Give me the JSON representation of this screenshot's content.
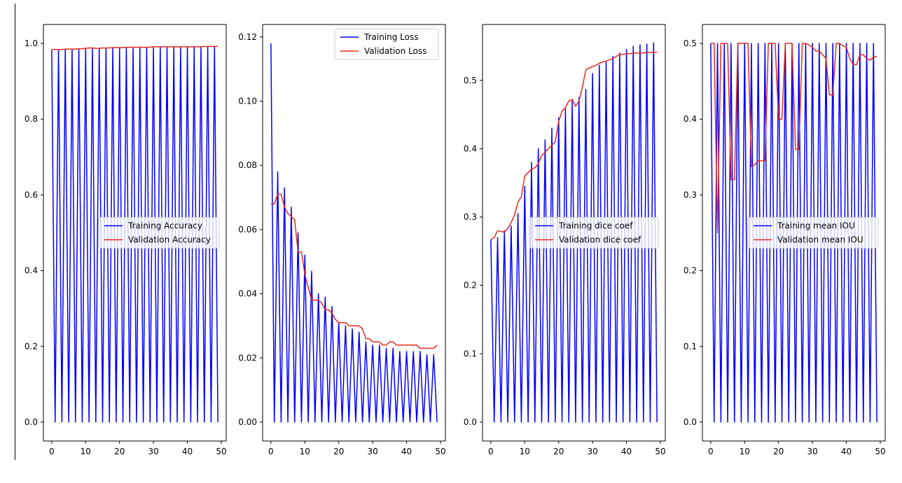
{
  "chart_data": [
    {
      "type": "line",
      "x": [
        0,
        1,
        2,
        3,
        4,
        5,
        6,
        7,
        8,
        9,
        10,
        11,
        12,
        13,
        14,
        15,
        16,
        17,
        18,
        19,
        20,
        21,
        22,
        23,
        24,
        25,
        26,
        27,
        28,
        29,
        30,
        31,
        32,
        33,
        34,
        35,
        36,
        37,
        38,
        39,
        40,
        41,
        42,
        43,
        44,
        45,
        46,
        47,
        48,
        49
      ],
      "xlim": [
        -2.45,
        51.45
      ],
      "ylim": [
        -0.05,
        1.05
      ],
      "xticks": [
        0,
        10,
        20,
        30,
        40,
        50
      ],
      "yticks": [
        0.0,
        0.2,
        0.4,
        0.6,
        0.8,
        1.0
      ],
      "ytick_labels": [
        "0.0",
        "0.2",
        "0.4",
        "0.6",
        "0.8",
        "1.0"
      ],
      "legend_loc": "center right",
      "series": [
        {
          "name": "Training Accuracy",
          "color": "#0000ff",
          "values": [
            0.983,
            0,
            0.984,
            0,
            0.984,
            0,
            0.985,
            0,
            0.985,
            0,
            0.986,
            0,
            0.987,
            0,
            0.987,
            0,
            0.987,
            0,
            0.988,
            0,
            0.988,
            0,
            0.988,
            0,
            0.989,
            0,
            0.989,
            0,
            0.989,
            0,
            0.989,
            0,
            0.99,
            0,
            0.99,
            0,
            0.99,
            0,
            0.99,
            0,
            0.991,
            0,
            0.991,
            0,
            0.991,
            0,
            0.991,
            0,
            0.991,
            0
          ]
        },
        {
          "name": "Validation Accuracy",
          "color": "#e8291c",
          "values": [
            0.984,
            0.984,
            0.984,
            0.984,
            0.985,
            0.985,
            0.985,
            0.985,
            0.986,
            0.986,
            0.987,
            0.988,
            0.988,
            0.987,
            0.987,
            0.988,
            0.988,
            0.988,
            0.989,
            0.989,
            0.989,
            0.989,
            0.99,
            0.99,
            0.99,
            0.99,
            0.99,
            0.99,
            0.99,
            0.99,
            0.991,
            0.991,
            0.991,
            0.991,
            0.991,
            0.991,
            0.991,
            0.991,
            0.991,
            0.991,
            0.991,
            0.991,
            0.991,
            0.991,
            0.991,
            0.992,
            0.992,
            0.992,
            0.992,
            0.992
          ]
        }
      ]
    },
    {
      "type": "line",
      "x": [
        0,
        1,
        2,
        3,
        4,
        5,
        6,
        7,
        8,
        9,
        10,
        11,
        12,
        13,
        14,
        15,
        16,
        17,
        18,
        19,
        20,
        21,
        22,
        23,
        24,
        25,
        26,
        27,
        28,
        29,
        30,
        31,
        32,
        33,
        34,
        35,
        36,
        37,
        38,
        39,
        40,
        41,
        42,
        43,
        44,
        45,
        46,
        47,
        48,
        49
      ],
      "xlim": [
        -2.45,
        51.45
      ],
      "ylim": [
        -0.0059,
        0.1239
      ],
      "xticks": [
        0,
        10,
        20,
        30,
        40,
        50
      ],
      "yticks": [
        0.0,
        0.02,
        0.04,
        0.06,
        0.08,
        0.1,
        0.12
      ],
      "ytick_labels": [
        "0.00",
        "0.02",
        "0.04",
        "0.06",
        "0.08",
        "0.10",
        "0.12"
      ],
      "legend_loc": "upper right",
      "series": [
        {
          "name": "Training Loss",
          "color": "#0000ff",
          "values": [
            0.118,
            0,
            0.078,
            0,
            0.073,
            0,
            0.067,
            0,
            0.059,
            0,
            0.052,
            0,
            0.047,
            0,
            0.04,
            0,
            0.039,
            0,
            0.036,
            0,
            0.031,
            0,
            0.03,
            0,
            0.029,
            0,
            0.028,
            0,
            0.025,
            0,
            0.024,
            0,
            0.024,
            0,
            0.023,
            0,
            0.023,
            0,
            0.022,
            0,
            0.022,
            0,
            0.022,
            0,
            0.022,
            0,
            0.021,
            0,
            0.021,
            0
          ]
        },
        {
          "name": "Validation Loss",
          "color": "#e8291c",
          "values": [
            0.068,
            0.068,
            0.071,
            0.071,
            0.067,
            0.065,
            0.064,
            0.063,
            0.053,
            0.053,
            0.046,
            0.042,
            0.038,
            0.038,
            0.038,
            0.037,
            0.035,
            0.035,
            0.034,
            0.032,
            0.031,
            0.031,
            0.031,
            0.03,
            0.03,
            0.03,
            0.03,
            0.029,
            0.026,
            0.026,
            0.025,
            0.025,
            0.025,
            0.024,
            0.024,
            0.025,
            0.025,
            0.024,
            0.024,
            0.024,
            0.024,
            0.024,
            0.024,
            0.024,
            0.023,
            0.023,
            0.023,
            0.023,
            0.023,
            0.024
          ]
        }
      ]
    },
    {
      "type": "line",
      "x": [
        0,
        1,
        2,
        3,
        4,
        5,
        6,
        7,
        8,
        9,
        10,
        11,
        12,
        13,
        14,
        15,
        16,
        17,
        18,
        19,
        20,
        21,
        22,
        23,
        24,
        25,
        26,
        27,
        28,
        29,
        30,
        31,
        32,
        33,
        34,
        35,
        36,
        37,
        38,
        39,
        40,
        41,
        42,
        43,
        44,
        45,
        46,
        47,
        48,
        49
      ],
      "xlim": [
        -2.45,
        51.45
      ],
      "ylim": [
        -0.0277,
        0.5817
      ],
      "xticks": [
        0,
        10,
        20,
        30,
        40,
        50
      ],
      "yticks": [
        0.0,
        0.1,
        0.2,
        0.3,
        0.4,
        0.5
      ],
      "ytick_labels": [
        "0.0",
        "0.1",
        "0.2",
        "0.3",
        "0.4",
        "0.5"
      ],
      "legend_loc": "center right",
      "series": [
        {
          "name": "Training dice coef",
          "color": "#0000ff",
          "values": [
            0.267,
            0,
            0.27,
            0,
            0.28,
            0,
            0.287,
            0,
            0.305,
            0,
            0.345,
            0,
            0.38,
            0,
            0.4,
            0,
            0.413,
            0,
            0.43,
            0,
            0.445,
            0,
            0.458,
            0,
            0.47,
            0,
            0.475,
            0,
            0.487,
            0,
            0.51,
            0,
            0.522,
            0,
            0.527,
            0,
            0.535,
            0,
            0.54,
            0,
            0.545,
            0,
            0.55,
            0,
            0.552,
            0,
            0.553,
            0,
            0.555,
            0
          ]
        },
        {
          "name": "Validation dice coef",
          "color": "#e8291c",
          "values": [
            0.267,
            0.27,
            0.28,
            0.279,
            0.278,
            0.283,
            0.292,
            0.303,
            0.322,
            0.33,
            0.36,
            0.365,
            0.37,
            0.372,
            0.378,
            0.39,
            0.395,
            0.4,
            0.405,
            0.41,
            0.44,
            0.455,
            0.46,
            0.47,
            0.472,
            0.462,
            0.47,
            0.49,
            0.515,
            0.518,
            0.52,
            0.522,
            0.525,
            0.527,
            0.528,
            0.53,
            0.532,
            0.535,
            0.538,
            0.538,
            0.539,
            0.539,
            0.54,
            0.54,
            0.54,
            0.54,
            0.541,
            0.541,
            0.541,
            0.541
          ]
        }
      ]
    },
    {
      "type": "line",
      "x": [
        0,
        1,
        2,
        3,
        4,
        5,
        6,
        7,
        8,
        9,
        10,
        11,
        12,
        13,
        14,
        15,
        16,
        17,
        18,
        19,
        20,
        21,
        22,
        23,
        24,
        25,
        26,
        27,
        28,
        29,
        30,
        31,
        32,
        33,
        34,
        35,
        36,
        37,
        38,
        39,
        40,
        41,
        42,
        43,
        44,
        45,
        46,
        47,
        48,
        49
      ],
      "xlim": [
        -2.45,
        51.45
      ],
      "ylim": [
        -0.025,
        0.525
      ],
      "xticks": [
        0,
        10,
        20,
        30,
        40,
        50
      ],
      "yticks": [
        0.0,
        0.1,
        0.2,
        0.3,
        0.4,
        0.5
      ],
      "ytick_labels": [
        "0.0",
        "0.1",
        "0.2",
        "0.3",
        "0.4",
        "0.5"
      ],
      "legend_loc": "center right",
      "series": [
        {
          "name": "Training mean IOU",
          "color": "#0000ff",
          "values": [
            0.5,
            0,
            0.5,
            0,
            0.5,
            0,
            0.5,
            0,
            0.5,
            0,
            0.5,
            0,
            0.5,
            0,
            0.5,
            0,
            0.5,
            0,
            0.5,
            0,
            0.5,
            0,
            0.5,
            0,
            0.5,
            0,
            0.5,
            0,
            0.5,
            0,
            0.5,
            0,
            0.5,
            0,
            0.5,
            0,
            0.5,
            0,
            0.5,
            0,
            0.5,
            0,
            0.5,
            0,
            0.5,
            0,
            0.5,
            0,
            0.5,
            0
          ]
        },
        {
          "name": "Validation mean IOU",
          "color": "#e8291c",
          "values": [
            0.5,
            0.5,
            0.25,
            0.5,
            0.5,
            0.5,
            0.32,
            0.32,
            0.5,
            0.5,
            0.5,
            0.5,
            0.337,
            0.34,
            0.345,
            0.345,
            0.345,
            0.5,
            0.5,
            0.5,
            0.4,
            0.4,
            0.5,
            0.5,
            0.5,
            0.36,
            0.36,
            0.5,
            0.5,
            0.498,
            0.495,
            0.49,
            0.49,
            0.485,
            0.48,
            0.432,
            0.432,
            0.5,
            0.5,
            0.497,
            0.495,
            0.48,
            0.472,
            0.472,
            0.485,
            0.485,
            0.48,
            0.478,
            0.482,
            0.483
          ]
        }
      ]
    }
  ]
}
